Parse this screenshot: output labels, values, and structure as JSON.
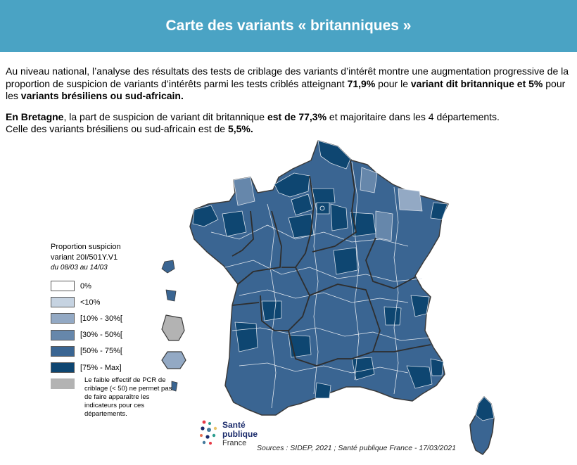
{
  "header": {
    "title": "Carte des variants « britanniques »"
  },
  "intro": {
    "p1_a": "Au niveau national, l’analyse des résultats des tests de criblage des variants d’intérêt montre une augmentation progressive de la proportion de suspicion de variants d’intérêts parmi les tests criblés atteignant ",
    "p1_b": "71,9%",
    "p1_c": " pour le ",
    "p1_d": "variant dit britannique et 5%",
    "p1_e": " pour les ",
    "p1_f": "variants brésiliens ou sud-africain.",
    "p2_a": "En Bretagne",
    "p2_b": ", la part de suspicion de variant dit britannique ",
    "p2_c": "est de 77,3%",
    "p2_d": " et majoritaire dans les 4 départements.",
    "p3_a": "Celle des variants brésiliens ou sud-africain est de ",
    "p3_b": "5,5%."
  },
  "legend": {
    "title_1": "Proportion suspicion",
    "title_2": "variant 20I/501Y.V1",
    "period": "du 08/03 au 14/03",
    "items": [
      {
        "label": "0%",
        "color": "#ffffff"
      },
      {
        "label": "<10%",
        "color": "#c6d3e1"
      },
      {
        "label": "[10% - 30%[",
        "color": "#93a9c4"
      },
      {
        "label": "[30% - 50%[",
        "color": "#6687ab"
      },
      {
        "label": "[50% - 75%[",
        "color": "#3a6592"
      },
      {
        "label": "[75% - Max]",
        "color": "#0e4671"
      },
      {
        "label": "",
        "color": "#b3b3b3"
      }
    ],
    "note": "Le faible effectif de PCR de criblage (< 50) ne permet pas de faire apparaître les indicateurs pour ces départements."
  },
  "logo": {
    "line1": "Santé",
    "line2": "publique",
    "line3": "France"
  },
  "sources": "Sources : SIDEP, 2021 ; Santé publique France - 17/03/2021"
}
